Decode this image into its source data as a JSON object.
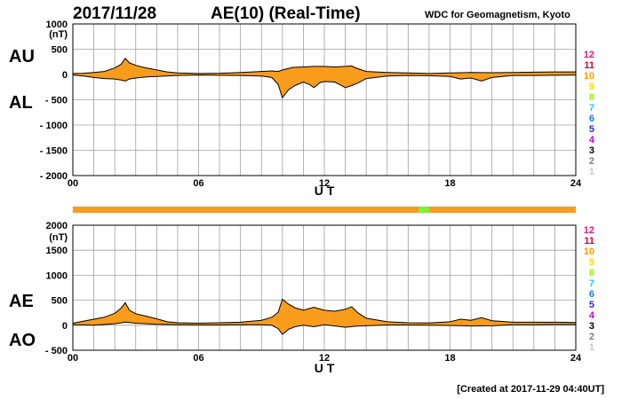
{
  "header": {
    "date": "2017/11/28",
    "title": "AE(10) (Real-Time)",
    "credit": "WDC for Geomagnetism, Kyoto"
  },
  "footer": "[Created at 2017-11-29 04:40UT]",
  "station_labels": [
    "12",
    "11",
    "10",
    "9",
    "8",
    "7",
    "6",
    "5",
    "4",
    "3",
    "2",
    "1"
  ],
  "station_colors": [
    "#e8177d",
    "#d8003a",
    "#ff9c00",
    "#e8e800",
    "#a8ec00",
    "#1ccfe0",
    "#1080ee",
    "#2a2ad0",
    "#d000d0",
    "#000000",
    "#808080",
    "#c8c8c8"
  ],
  "colors": {
    "fill": "#f99c1b",
    "grid": "#a0a0a0",
    "bar_main": "#f99c1b",
    "bar_highlight": "#86ee3a"
  },
  "chart_data": [
    {
      "type": "area",
      "panel": "AU/AL",
      "series_labels": [
        "AU",
        "AL"
      ],
      "unit_label": "(nT)",
      "xlabel": "U T",
      "xlim": [
        0,
        24
      ],
      "ylim": [
        -2000,
        1000
      ],
      "x_ticks": [
        "00",
        "06",
        "12",
        "18",
        "24"
      ],
      "y_ticks": [
        "1000",
        "500",
        "0",
        "- 500",
        "- 1000",
        "- 1500",
        "- 2000"
      ],
      "grid": true,
      "upper": [
        [
          0,
          20
        ],
        [
          0.5,
          25
        ],
        [
          1,
          40
        ],
        [
          1.5,
          60
        ],
        [
          2,
          130
        ],
        [
          2.3,
          200
        ],
        [
          2.5,
          320
        ],
        [
          2.7,
          230
        ],
        [
          3,
          180
        ],
        [
          3.5,
          130
        ],
        [
          4,
          90
        ],
        [
          4.5,
          50
        ],
        [
          5,
          30
        ],
        [
          6,
          20
        ],
        [
          7,
          25
        ],
        [
          8,
          40
        ],
        [
          9,
          60
        ],
        [
          9.5,
          70
        ],
        [
          9.8,
          60
        ],
        [
          10,
          90
        ],
        [
          10.5,
          140
        ],
        [
          11,
          150
        ],
        [
          11.5,
          160
        ],
        [
          12,
          160
        ],
        [
          12.5,
          150
        ],
        [
          13,
          160
        ],
        [
          13.3,
          170
        ],
        [
          13.5,
          130
        ],
        [
          14,
          60
        ],
        [
          15,
          40
        ],
        [
          16,
          30
        ],
        [
          17,
          20
        ],
        [
          18,
          30
        ],
        [
          19,
          40
        ],
        [
          20,
          35
        ],
        [
          21,
          40
        ],
        [
          22,
          45
        ],
        [
          23,
          50
        ],
        [
          24,
          50
        ]
      ],
      "lower": [
        [
          0,
          -10
        ],
        [
          0.5,
          -30
        ],
        [
          1,
          -60
        ],
        [
          1.5,
          -80
        ],
        [
          2,
          -90
        ],
        [
          2.3,
          -110
        ],
        [
          2.5,
          -130
        ],
        [
          2.7,
          -90
        ],
        [
          3,
          -70
        ],
        [
          3.5,
          -50
        ],
        [
          4,
          -40
        ],
        [
          5,
          -20
        ],
        [
          6,
          -10
        ],
        [
          7,
          -15
        ],
        [
          8,
          -20
        ],
        [
          9,
          -30
        ],
        [
          9.5,
          -60
        ],
        [
          9.8,
          -200
        ],
        [
          10,
          -460
        ],
        [
          10.3,
          -300
        ],
        [
          10.6,
          -220
        ],
        [
          11,
          -150
        ],
        [
          11.3,
          -200
        ],
        [
          11.5,
          -260
        ],
        [
          11.8,
          -160
        ],
        [
          12,
          -140
        ],
        [
          12.5,
          -150
        ],
        [
          13,
          -260
        ],
        [
          13.3,
          -220
        ],
        [
          13.6,
          -170
        ],
        [
          14,
          -80
        ],
        [
          15,
          -30
        ],
        [
          16,
          -20
        ],
        [
          17,
          -25
        ],
        [
          18,
          -40
        ],
        [
          18.5,
          -90
        ],
        [
          19,
          -70
        ],
        [
          19.5,
          -130
        ],
        [
          20,
          -60
        ],
        [
          21,
          -20
        ],
        [
          22,
          -20
        ],
        [
          23,
          -15
        ],
        [
          24,
          -10
        ]
      ]
    },
    {
      "type": "area",
      "panel": "AE/AO",
      "series_labels": [
        "AE",
        "AO"
      ],
      "unit_label": "(nT)",
      "xlabel": "U T",
      "xlim": [
        0,
        24
      ],
      "ylim": [
        -500,
        2000
      ],
      "x_ticks": [
        "00",
        "06",
        "12",
        "18",
        "24"
      ],
      "y_ticks": [
        "2000",
        "1500",
        "1000",
        "500",
        "0",
        "- 500"
      ],
      "grid": true,
      "upper": [
        [
          0,
          40
        ],
        [
          0.5,
          80
        ],
        [
          1,
          120
        ],
        [
          1.5,
          160
        ],
        [
          2,
          240
        ],
        [
          2.3,
          340
        ],
        [
          2.5,
          450
        ],
        [
          2.7,
          300
        ],
        [
          3,
          230
        ],
        [
          3.5,
          180
        ],
        [
          4,
          130
        ],
        [
          4.5,
          70
        ],
        [
          5,
          50
        ],
        [
          6,
          40
        ],
        [
          7,
          50
        ],
        [
          8,
          60
        ],
        [
          9,
          100
        ],
        [
          9.5,
          160
        ],
        [
          9.8,
          260
        ],
        [
          10,
          520
        ],
        [
          10.3,
          420
        ],
        [
          10.6,
          350
        ],
        [
          11,
          300
        ],
        [
          11.5,
          360
        ],
        [
          12,
          300
        ],
        [
          12.5,
          280
        ],
        [
          13,
          320
        ],
        [
          13.3,
          370
        ],
        [
          13.6,
          250
        ],
        [
          14,
          140
        ],
        [
          15,
          70
        ],
        [
          16,
          50
        ],
        [
          17,
          45
        ],
        [
          18,
          70
        ],
        [
          18.5,
          120
        ],
        [
          19,
          100
        ],
        [
          19.5,
          150
        ],
        [
          20,
          90
        ],
        [
          21,
          60
        ],
        [
          22,
          60
        ],
        [
          23,
          60
        ],
        [
          24,
          55
        ]
      ],
      "lower": [
        [
          0,
          10
        ],
        [
          1,
          0
        ],
        [
          2,
          30
        ],
        [
          2.5,
          60
        ],
        [
          3,
          40
        ],
        [
          4,
          20
        ],
        [
          5,
          10
        ],
        [
          6,
          5
        ],
        [
          7,
          5
        ],
        [
          8,
          10
        ],
        [
          9,
          10
        ],
        [
          9.5,
          0
        ],
        [
          9.8,
          -70
        ],
        [
          10,
          -180
        ],
        [
          10.3,
          -80
        ],
        [
          10.6,
          -30
        ],
        [
          11,
          0
        ],
        [
          11.5,
          -30
        ],
        [
          12,
          10
        ],
        [
          13,
          -40
        ],
        [
          13.5,
          -20
        ],
        [
          14,
          -10
        ],
        [
          15,
          5
        ],
        [
          16,
          5
        ],
        [
          17,
          0
        ],
        [
          18,
          -5
        ],
        [
          19,
          -15
        ],
        [
          20,
          -10
        ],
        [
          21,
          10
        ],
        [
          22,
          10
        ],
        [
          23,
          15
        ],
        [
          24,
          15
        ]
      ]
    }
  ],
  "status_bar": {
    "xlim": [
      0,
      24
    ],
    "highlight_range": [
      16.5,
      17.0
    ]
  }
}
